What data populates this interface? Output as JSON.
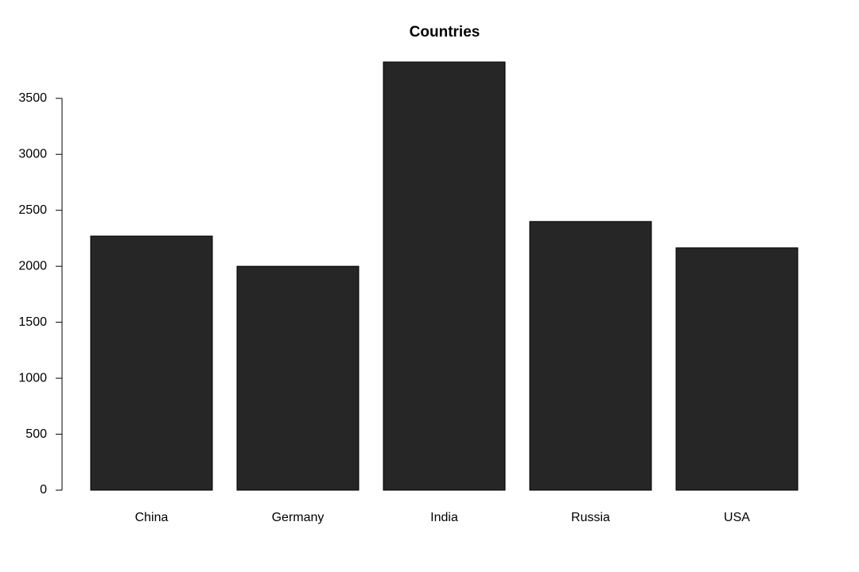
{
  "chart_data": {
    "type": "bar",
    "title": "Countries",
    "categories": [
      "China",
      "Germany",
      "India",
      "Russia",
      "USA"
    ],
    "values": [
      2270,
      2000,
      3825,
      2400,
      2165
    ],
    "color": "#262626",
    "ylim": [
      0,
      3825
    ],
    "yticks": [
      0,
      500,
      1000,
      1500,
      2000,
      2500,
      3000,
      3500
    ],
    "grid": false
  }
}
